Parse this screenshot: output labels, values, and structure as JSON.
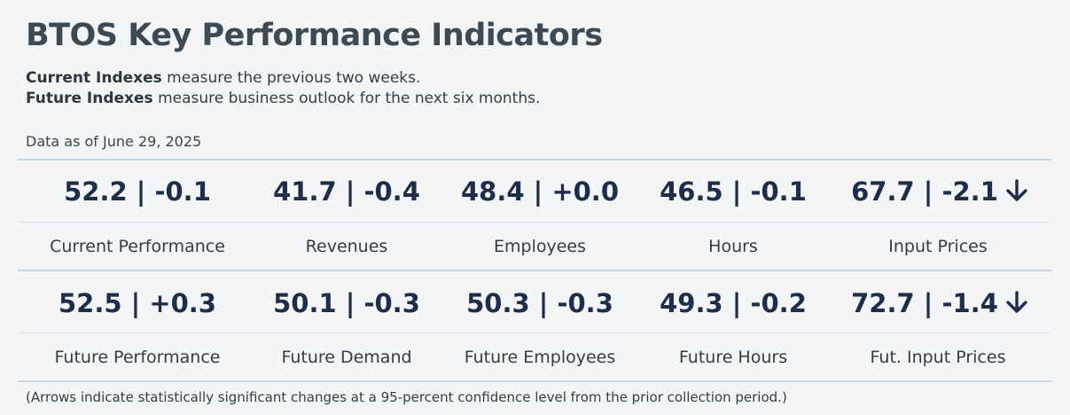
{
  "title": "BTOS Key Performance Indicators",
  "description": {
    "current_bold": "Current Indexes",
    "current_text": " measure the previous two weeks.",
    "future_bold": "Future Indexes",
    "future_text": " measure business outlook for the next six months."
  },
  "as_of": "Data as of June 29, 2025",
  "current_row": [
    {
      "value": "52.2 | -0.1",
      "label": "Current Performance",
      "arrow": ""
    },
    {
      "value": "41.7 | -0.4",
      "label": "Revenues",
      "arrow": ""
    },
    {
      "value": "48.4 | +0.0",
      "label": "Employees",
      "arrow": ""
    },
    {
      "value": "46.5 | -0.1",
      "label": "Hours",
      "arrow": ""
    },
    {
      "value": "67.7 | -2.1",
      "label": "Input Prices",
      "arrow": "down-arrow-icon"
    }
  ],
  "future_row": [
    {
      "value": "52.5 | +0.3",
      "label": "Future Performance",
      "arrow": ""
    },
    {
      "value": "50.1 | -0.3",
      "label": "Future Demand",
      "arrow": ""
    },
    {
      "value": "50.3 | -0.3",
      "label": "Future Employees",
      "arrow": ""
    },
    {
      "value": "49.3 | -0.2",
      "label": "Future Hours",
      "arrow": ""
    },
    {
      "value": "72.7 | -1.4",
      "label": "Fut. Input Prices",
      "arrow": "down-arrow-icon"
    }
  ],
  "footnote": "(Arrows indicate statistically significant changes at a 95-percent confidence level from the prior collection period.)",
  "colors": {
    "value_text": "#1e2d4a",
    "rule": "#c9d5df",
    "background": "#f4f5f7"
  }
}
